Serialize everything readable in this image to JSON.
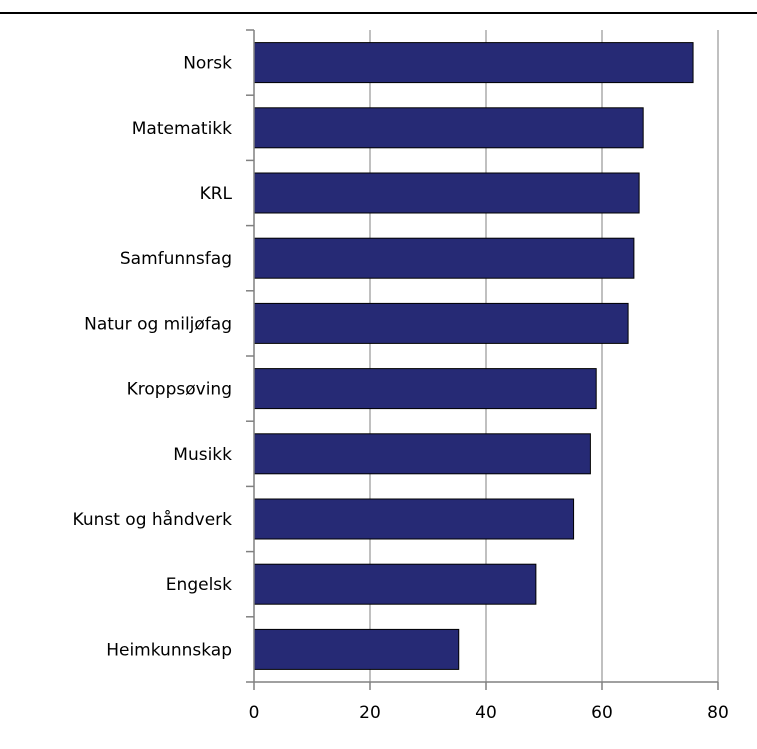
{
  "chart_data": {
    "type": "bar",
    "orientation": "horizontal",
    "categories": [
      "Norsk",
      "Matematikk",
      "KRL",
      "Samfunnsfag",
      "Natur og miljøfag",
      "Kroppsøving",
      "Musikk",
      "Kunst og håndverk",
      "Engelsk",
      "Heimkunnskap"
    ],
    "values": [
      75.7,
      67.1,
      66.4,
      65.5,
      64.5,
      59,
      58,
      55.1,
      48.6,
      35.3
    ],
    "xlim": [
      0,
      80
    ],
    "xticks": [
      "0",
      "20",
      "40",
      "60",
      "80"
    ],
    "grid": true,
    "colors": {
      "bar": "#262a75",
      "bar_edge": "#000000",
      "grid": "#c0c0c0",
      "axis": "#808080",
      "top_rule": "#000000"
    }
  }
}
